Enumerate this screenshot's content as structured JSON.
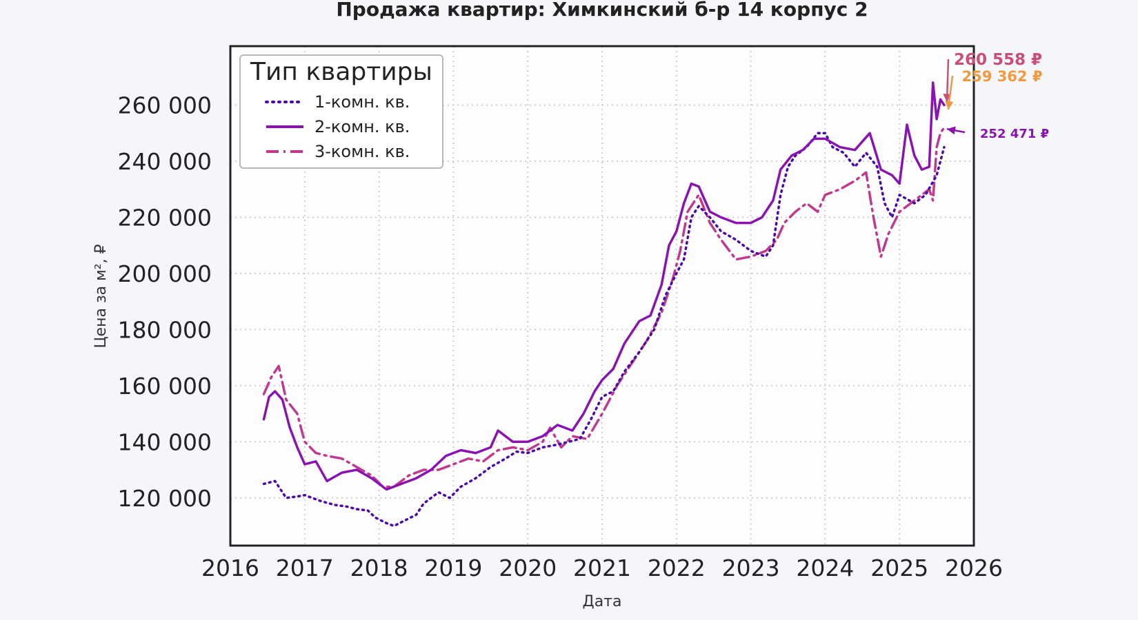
{
  "chart_data": {
    "type": "line",
    "title": "Продажа квартир: Химкинский б-р 14 корпус 2",
    "xlabel": "Дата",
    "ylabel": "Цена за м², ₽",
    "xlim": [
      2016,
      2026
    ],
    "ylim": [
      103000,
      281000
    ],
    "x_ticks": [
      "2016",
      "2017",
      "2018",
      "2019",
      "2020",
      "2021",
      "2022",
      "2023",
      "2024",
      "2025",
      "2026"
    ],
    "y_ticks": [
      "120 000",
      "140 000",
      "160 000",
      "180 000",
      "200 000",
      "220 000",
      "240 000",
      "260 000"
    ],
    "grid": true,
    "legend": {
      "title": "Тип квартиры",
      "placement": "top-left",
      "entries": [
        "1-комн. кв.",
        "2-комн. кв.",
        "3-комн. кв."
      ]
    },
    "series": [
      {
        "name": "1-комн. кв.",
        "color": "#4b0aa8",
        "style": "dotted",
        "points": [
          [
            2016.45,
            125000
          ],
          [
            2016.6,
            126000
          ],
          [
            2016.75,
            120000
          ],
          [
            2016.9,
            120500
          ],
          [
            2017.0,
            121000
          ],
          [
            2017.2,
            119000
          ],
          [
            2017.4,
            117500
          ],
          [
            2017.55,
            117000
          ],
          [
            2017.7,
            116000
          ],
          [
            2017.85,
            115500
          ],
          [
            2017.95,
            113000
          ],
          [
            2018.1,
            111000
          ],
          [
            2018.2,
            110000
          ],
          [
            2018.35,
            112000
          ],
          [
            2018.5,
            114000
          ],
          [
            2018.6,
            118000
          ],
          [
            2018.8,
            122000
          ],
          [
            2018.95,
            120000
          ],
          [
            2019.1,
            124000
          ],
          [
            2019.3,
            127000
          ],
          [
            2019.5,
            131000
          ],
          [
            2019.7,
            134000
          ],
          [
            2019.85,
            136500
          ],
          [
            2020.0,
            136000
          ],
          [
            2020.2,
            138000
          ],
          [
            2020.4,
            139000
          ],
          [
            2020.55,
            140000
          ],
          [
            2020.7,
            141000
          ],
          [
            2020.85,
            148000
          ],
          [
            2021.0,
            156000
          ],
          [
            2021.15,
            158000
          ],
          [
            2021.3,
            165000
          ],
          [
            2021.5,
            172000
          ],
          [
            2021.7,
            180000
          ],
          [
            2021.85,
            192000
          ],
          [
            2022.0,
            200000
          ],
          [
            2022.1,
            205000
          ],
          [
            2022.2,
            220000
          ],
          [
            2022.3,
            224000
          ],
          [
            2022.45,
            220000
          ],
          [
            2022.6,
            215000
          ],
          [
            2022.8,
            212000
          ],
          [
            2023.0,
            208000
          ],
          [
            2023.2,
            206000
          ],
          [
            2023.3,
            210000
          ],
          [
            2023.4,
            228000
          ],
          [
            2023.5,
            238000
          ],
          [
            2023.6,
            242000
          ],
          [
            2023.75,
            245000
          ],
          [
            2023.9,
            250000
          ],
          [
            2024.0,
            250000
          ],
          [
            2024.1,
            245000
          ],
          [
            2024.25,
            243000
          ],
          [
            2024.4,
            238000
          ],
          [
            2024.55,
            243000
          ],
          [
            2024.7,
            238000
          ],
          [
            2024.8,
            225000
          ],
          [
            2024.9,
            220000
          ],
          [
            2025.0,
            228000
          ],
          [
            2025.2,
            225000
          ],
          [
            2025.35,
            228000
          ],
          [
            2025.5,
            235000
          ],
          [
            2025.55,
            240000
          ],
          [
            2025.6,
            245000
          ]
        ]
      },
      {
        "name": "2-комн. кв.",
        "color": "#8a12b0",
        "style": "solid",
        "points": [
          [
            2016.45,
            148000
          ],
          [
            2016.52,
            156000
          ],
          [
            2016.6,
            158000
          ],
          [
            2016.7,
            155000
          ],
          [
            2016.8,
            145000
          ],
          [
            2016.9,
            138000
          ],
          [
            2017.0,
            132000
          ],
          [
            2017.15,
            133000
          ],
          [
            2017.3,
            126000
          ],
          [
            2017.5,
            129000
          ],
          [
            2017.7,
            130000
          ],
          [
            2017.9,
            127000
          ],
          [
            2018.1,
            123000
          ],
          [
            2018.3,
            125000
          ],
          [
            2018.5,
            127000
          ],
          [
            2018.7,
            130000
          ],
          [
            2018.9,
            135000
          ],
          [
            2019.1,
            137000
          ],
          [
            2019.3,
            136000
          ],
          [
            2019.5,
            138000
          ],
          [
            2019.6,
            144000
          ],
          [
            2019.8,
            140000
          ],
          [
            2020.0,
            140000
          ],
          [
            2020.2,
            142000
          ],
          [
            2020.4,
            146000
          ],
          [
            2020.6,
            144000
          ],
          [
            2020.75,
            150000
          ],
          [
            2020.9,
            158000
          ],
          [
            2021.0,
            162000
          ],
          [
            2021.15,
            166000
          ],
          [
            2021.3,
            175000
          ],
          [
            2021.5,
            183000
          ],
          [
            2021.65,
            185000
          ],
          [
            2021.8,
            196000
          ],
          [
            2021.9,
            210000
          ],
          [
            2022.0,
            215000
          ],
          [
            2022.1,
            225000
          ],
          [
            2022.2,
            232000
          ],
          [
            2022.3,
            231000
          ],
          [
            2022.45,
            222000
          ],
          [
            2022.6,
            220000
          ],
          [
            2022.8,
            218000
          ],
          [
            2023.0,
            218000
          ],
          [
            2023.15,
            220000
          ],
          [
            2023.3,
            226000
          ],
          [
            2023.4,
            237000
          ],
          [
            2023.55,
            242000
          ],
          [
            2023.7,
            244000
          ],
          [
            2023.85,
            248000
          ],
          [
            2024.0,
            248000
          ],
          [
            2024.2,
            245000
          ],
          [
            2024.4,
            244000
          ],
          [
            2024.6,
            250000
          ],
          [
            2024.75,
            237000
          ],
          [
            2024.9,
            235000
          ],
          [
            2025.0,
            232000
          ],
          [
            2025.1,
            253000
          ],
          [
            2025.2,
            242000
          ],
          [
            2025.3,
            237000
          ],
          [
            2025.4,
            238000
          ],
          [
            2025.45,
            268000
          ],
          [
            2025.5,
            255000
          ],
          [
            2025.55,
            262000
          ],
          [
            2025.6,
            260000
          ]
        ]
      },
      {
        "name": "3-комн. кв.",
        "color": "#c0398f",
        "style": "dashdot",
        "points": [
          [
            2016.45,
            157000
          ],
          [
            2016.55,
            163000
          ],
          [
            2016.65,
            167000
          ],
          [
            2016.75,
            155000
          ],
          [
            2016.9,
            150000
          ],
          [
            2017.0,
            140000
          ],
          [
            2017.15,
            136000
          ],
          [
            2017.3,
            135000
          ],
          [
            2017.5,
            134000
          ],
          [
            2017.7,
            131000
          ],
          [
            2017.9,
            128000
          ],
          [
            2018.05,
            124000
          ],
          [
            2018.2,
            124000
          ],
          [
            2018.4,
            128000
          ],
          [
            2018.6,
            130000
          ],
          [
            2018.8,
            130000
          ],
          [
            2019.0,
            132000
          ],
          [
            2019.2,
            134000
          ],
          [
            2019.4,
            133000
          ],
          [
            2019.6,
            137000
          ],
          [
            2019.8,
            138000
          ],
          [
            2020.0,
            137000
          ],
          [
            2020.2,
            140000
          ],
          [
            2020.3,
            145000
          ],
          [
            2020.45,
            138000
          ],
          [
            2020.6,
            142000
          ],
          [
            2020.8,
            141000
          ],
          [
            2021.0,
            150000
          ],
          [
            2021.2,
            160000
          ],
          [
            2021.4,
            168000
          ],
          [
            2021.6,
            176000
          ],
          [
            2021.8,
            186000
          ],
          [
            2021.95,
            198000
          ],
          [
            2022.05,
            208000
          ],
          [
            2022.15,
            222000
          ],
          [
            2022.3,
            228000
          ],
          [
            2022.45,
            218000
          ],
          [
            2022.6,
            212000
          ],
          [
            2022.8,
            205000
          ],
          [
            2023.0,
            206000
          ],
          [
            2023.2,
            208000
          ],
          [
            2023.35,
            212000
          ],
          [
            2023.45,
            218000
          ],
          [
            2023.6,
            222000
          ],
          [
            2023.75,
            225000
          ],
          [
            2023.9,
            222000
          ],
          [
            2024.0,
            228000
          ],
          [
            2024.2,
            230000
          ],
          [
            2024.4,
            233000
          ],
          [
            2024.55,
            236000
          ],
          [
            2024.65,
            220000
          ],
          [
            2024.75,
            206000
          ],
          [
            2024.85,
            214000
          ],
          [
            2025.0,
            222000
          ],
          [
            2025.15,
            225000
          ],
          [
            2025.3,
            228000
          ],
          [
            2025.4,
            230000
          ],
          [
            2025.45,
            226000
          ],
          [
            2025.5,
            245000
          ],
          [
            2025.55,
            250000
          ],
          [
            2025.6,
            252000
          ]
        ]
      }
    ],
    "annotations": [
      {
        "text": "260 558 ₽",
        "color": "#c94f78",
        "target_x": 2025.6,
        "target_y": 260558
      },
      {
        "text": "259 362 ₽",
        "color": "#f09a40",
        "target_x": 2025.6,
        "target_y": 259362
      },
      {
        "text": "252 471 ₽",
        "color": "#8a12b0",
        "target_x": 2025.6,
        "target_y": 252471
      }
    ]
  }
}
